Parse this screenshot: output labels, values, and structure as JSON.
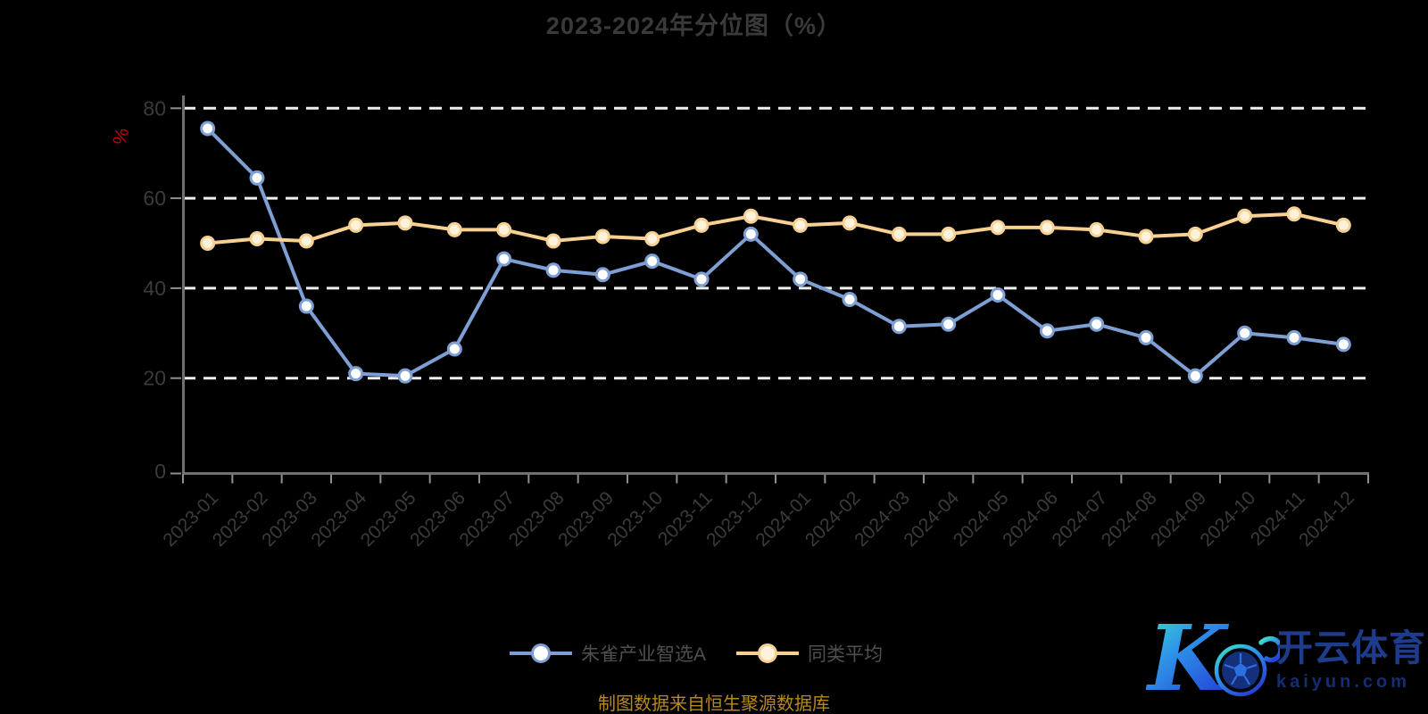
{
  "title": "2023-2024年分位图（%）",
  "y_axis": {
    "unit": "%"
  },
  "source_note": "制图数据来自恒生聚源数据库",
  "watermark": {
    "brand": "开云体育",
    "domain": "kaiyun.com",
    "logo_letter": "K"
  },
  "colors": {
    "background": "#000000",
    "title_text": "#3a3a3a",
    "axis_text": "#3b3b3b",
    "axis_line": "#707070",
    "tick_mark": "#909090",
    "grid_line": "#f0f0f0",
    "unit_label": "#c40000",
    "legend_text": "#4f4f4f",
    "source_text": "#b8891f",
    "watermark_text": "#1d3d8c"
  },
  "chart_data": {
    "type": "line",
    "title": "2023-2024年分位图（%）",
    "xlabel": "",
    "ylabel": "%",
    "ylim": [
      0,
      80
    ],
    "y_ticks": [
      0,
      20,
      40,
      60,
      80
    ],
    "grid": "dashed-horizontal-white",
    "legend_position": "bottom-center",
    "x": [
      "2023-01",
      "2023-02",
      "2023-03",
      "2023-04",
      "2023-05",
      "2023-06",
      "2023-07",
      "2023-08",
      "2023-09",
      "2023-10",
      "2023-11",
      "2023-12",
      "2024-01",
      "2024-02",
      "2024-03",
      "2024-04",
      "2024-05",
      "2024-06",
      "2024-07",
      "2024-08",
      "2024-09",
      "2024-10",
      "2024-11",
      "2024-12"
    ],
    "series": [
      {
        "name": "朱雀产业智选A",
        "color": "#7e9fd4",
        "marker_fill": "#ffffff",
        "values": [
          75.5,
          64.5,
          36,
          21,
          20.5,
          26.5,
          46.5,
          44,
          43,
          46,
          42,
          52,
          42,
          37.5,
          31.5,
          32,
          38.5,
          30.5,
          32,
          29,
          20.5,
          30,
          29,
          27.5
        ]
      },
      {
        "name": "同类平均",
        "color": "#f7d092",
        "marker_fill": "#fdf3dd",
        "values": [
          50,
          51,
          50.5,
          54,
          54.5,
          53,
          53,
          50.5,
          51.5,
          51,
          54,
          56,
          54,
          54.5,
          52,
          52,
          53.5,
          53.5,
          53,
          51.5,
          52,
          56,
          56.5,
          54
        ]
      }
    ]
  }
}
